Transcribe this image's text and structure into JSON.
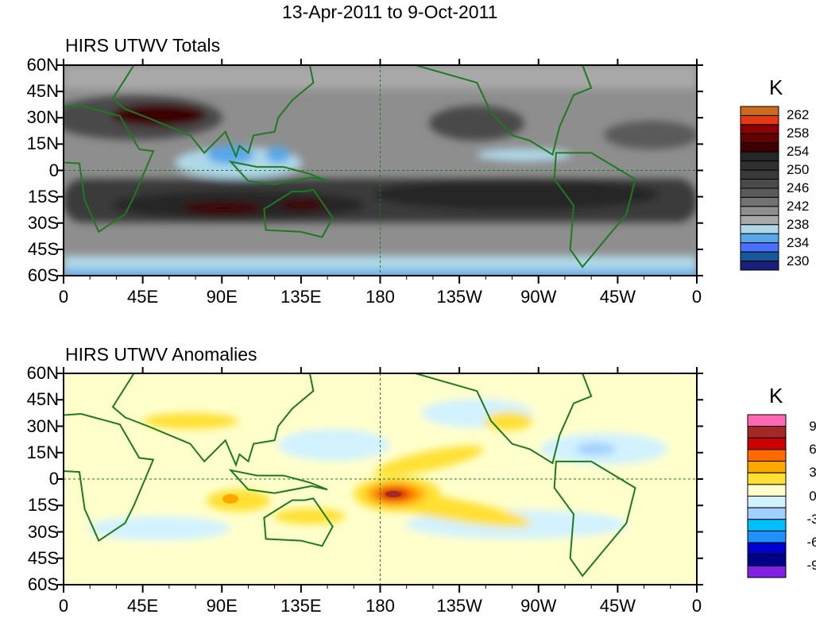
{
  "figure_title": "13-Apr-2011 to 9-Oct-2011",
  "chart_data": [
    {
      "type": "heatmap",
      "title": "HIRS UTWV Totals",
      "units": "K",
      "x_ticks": [
        "0",
        "45E",
        "90E",
        "135E",
        "180",
        "135W",
        "90W",
        "45W",
        "0"
      ],
      "y_ticks": [
        "60N",
        "45N",
        "30N",
        "15N",
        "0",
        "15S",
        "30S",
        "45S",
        "60S"
      ],
      "xlim": [
        0,
        360
      ],
      "ylim": [
        -60,
        60
      ],
      "colorbar": {
        "labels": [
          "262",
          "258",
          "254",
          "250",
          "246",
          "242",
          "238",
          "234",
          "230"
        ],
        "colors": [
          "#cc6a1e",
          "#e23a14",
          "#8b0000",
          "#650000",
          "#3c0000",
          "#262626",
          "#303030",
          "#3a3a3a",
          "#4a4a4a",
          "#5a5a5a",
          "#727272",
          "#8e8e8e",
          "#a9a9a9",
          "#aed8e8",
          "#56a8ea",
          "#4a70ff",
          "#16589a",
          "#1a1f78"
        ]
      }
    },
    {
      "type": "heatmap",
      "title": "HIRS UTWV Anomalies",
      "units": "K",
      "x_ticks": [
        "0",
        "45E",
        "90E",
        "135E",
        "180",
        "135W",
        "90W",
        "45W",
        "0"
      ],
      "y_ticks": [
        "60N",
        "45N",
        "30N",
        "15N",
        "0",
        "15S",
        "30S",
        "45S",
        "60S"
      ],
      "xlim": [
        0,
        360
      ],
      "ylim": [
        -60,
        60
      ],
      "colorbar": {
        "labels": [
          "9",
          "6",
          "3",
          "0",
          "-3",
          "-6",
          "-9"
        ],
        "colors": [
          "#ff69b4",
          "#a52828",
          "#cc0000",
          "#ff6a00",
          "#ffa800",
          "#ffe033",
          "#ffffcc",
          "#d2f2ff",
          "#a0d0ff",
          "#00bfff",
          "#1e90ff",
          "#0000cc",
          "#000088",
          "#8020e0"
        ]
      }
    }
  ]
}
